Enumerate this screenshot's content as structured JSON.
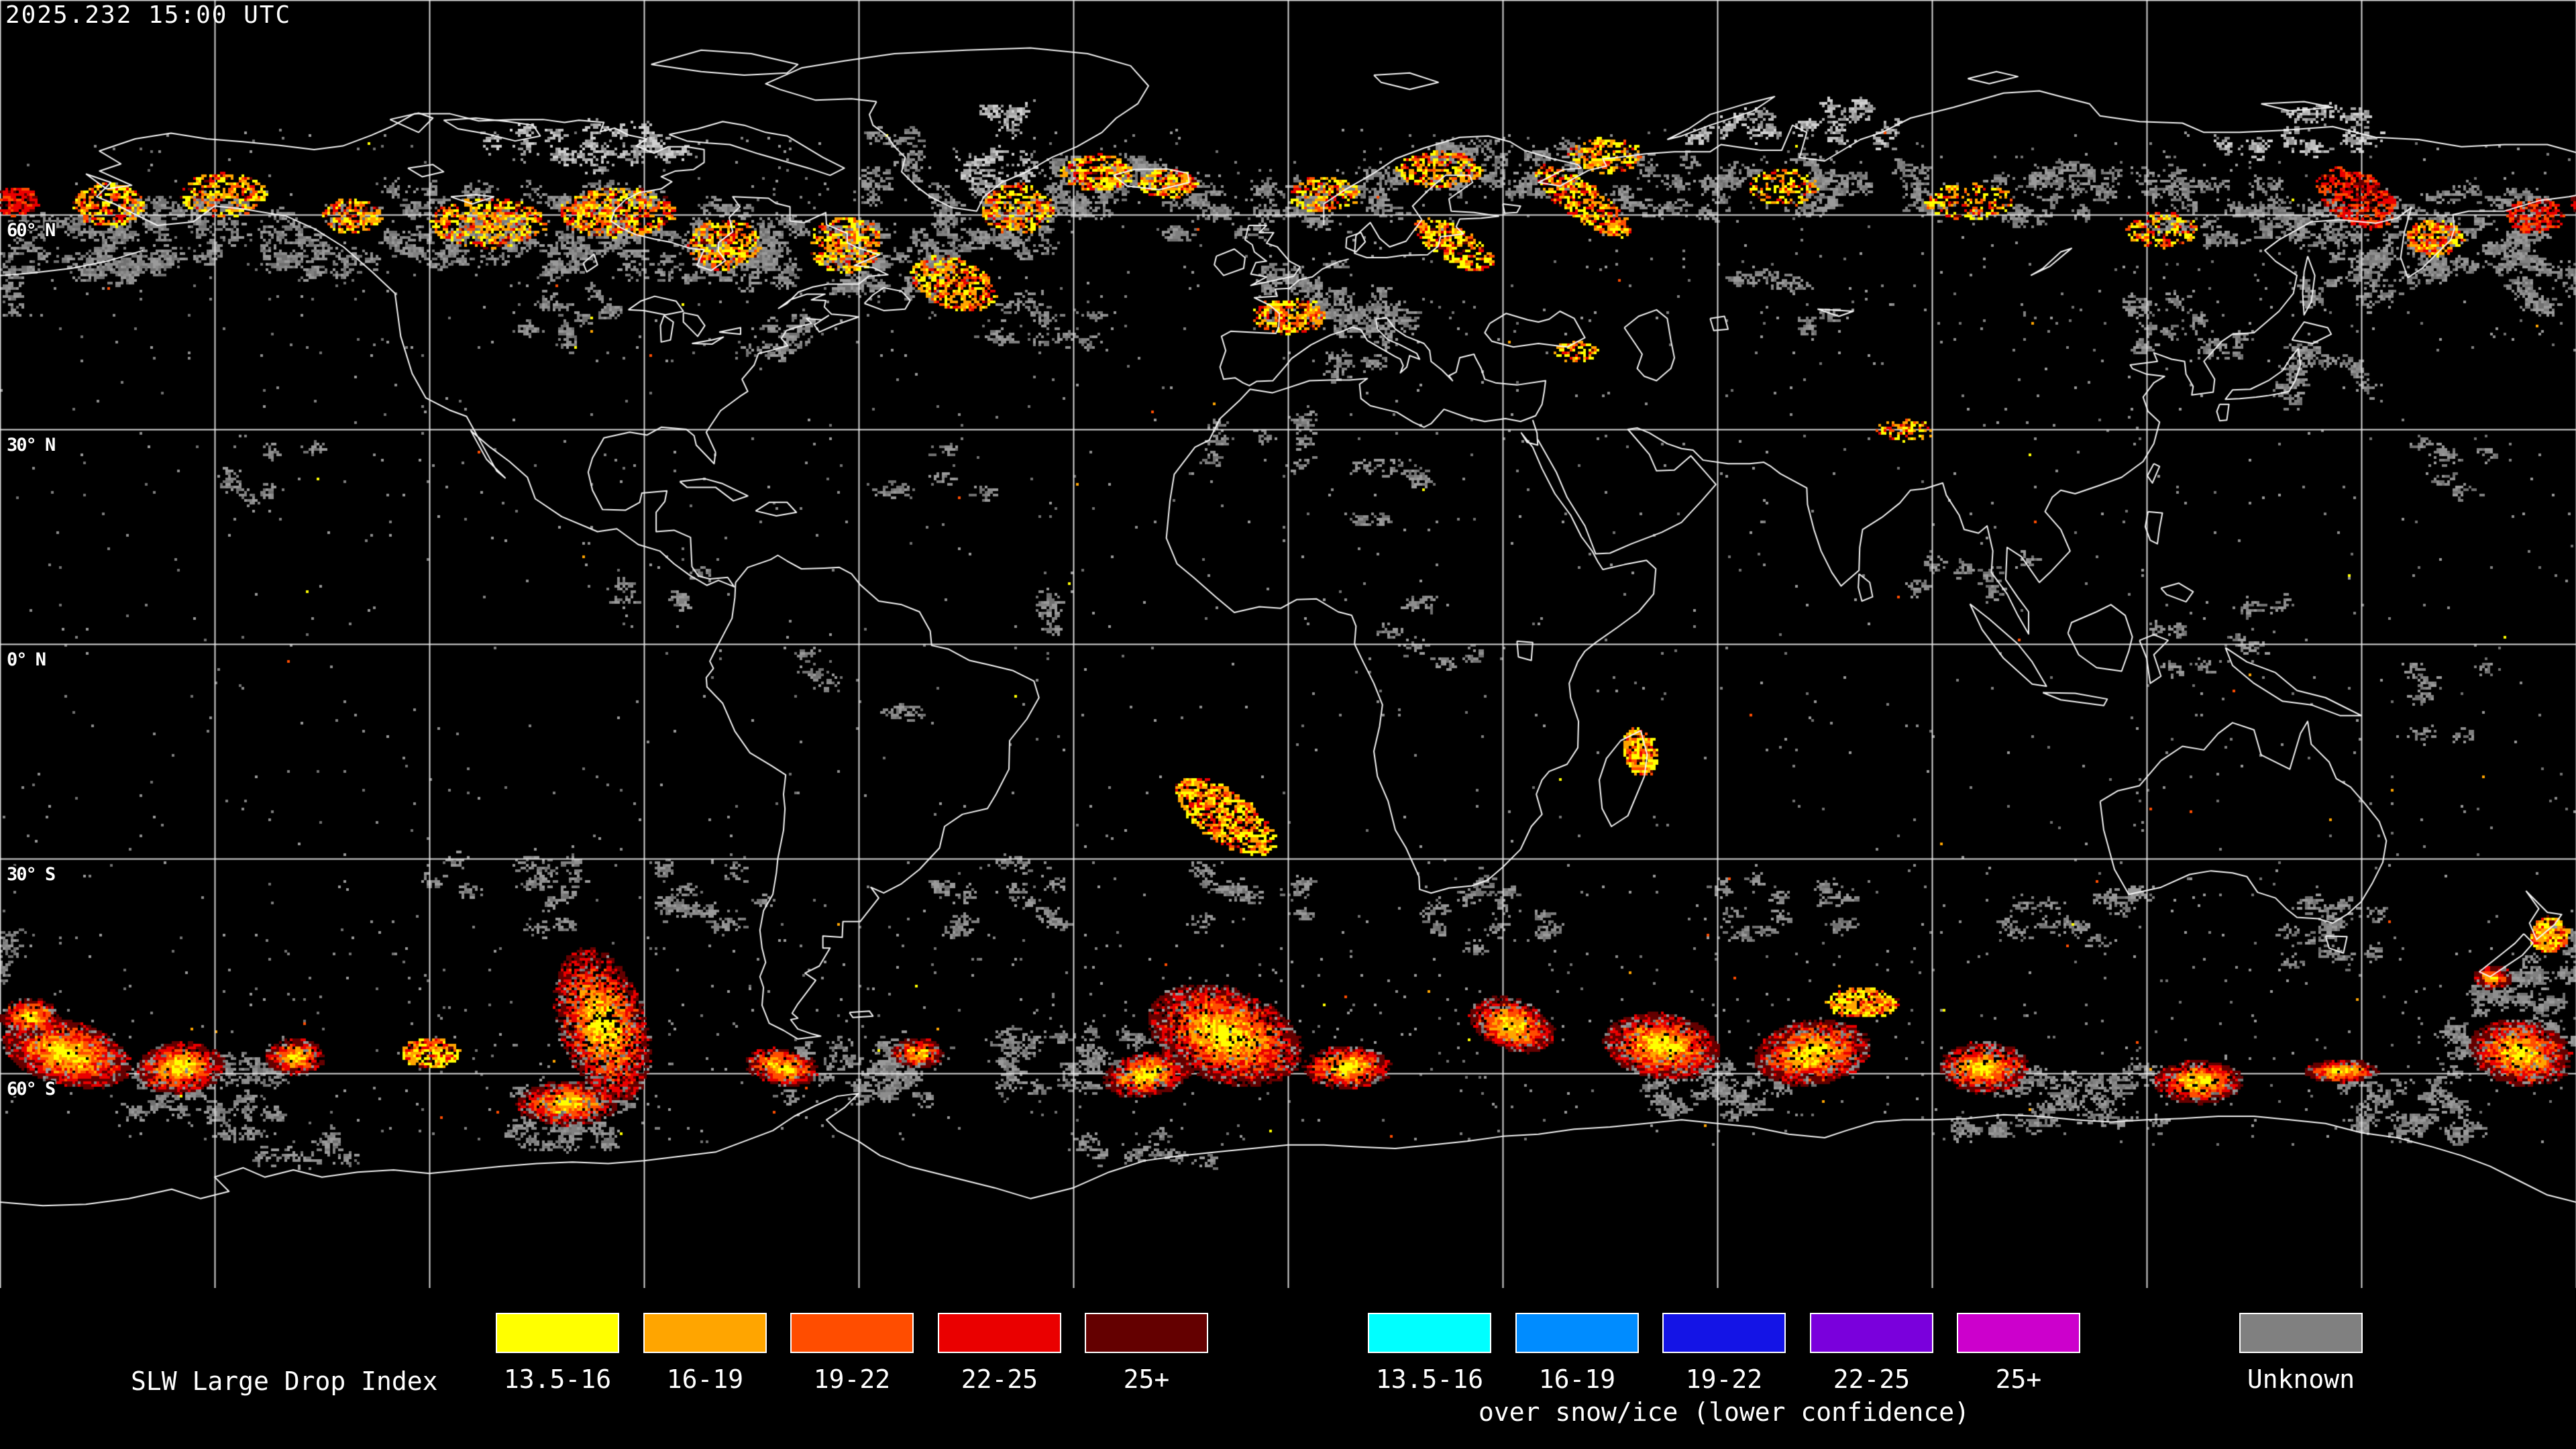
{
  "header": {
    "timestamp": "2025.232 15:00 UTC"
  },
  "map": {
    "lat_labels": [
      {
        "label": "60° N"
      },
      {
        "label": "30° N"
      },
      {
        "label": "0° N"
      },
      {
        "label": "30° S"
      },
      {
        "label": "60° S"
      }
    ]
  },
  "legend": {
    "title": "SLW Large Drop Index",
    "warm": [
      {
        "label": "13.5-16",
        "color": "#ffff00"
      },
      {
        "label": "16-19",
        "color": "#ffa500"
      },
      {
        "label": "19-22",
        "color": "#ff4d00"
      },
      {
        "label": "22-25",
        "color": "#ea0000"
      },
      {
        "label": "25+",
        "color": "#640000"
      }
    ],
    "cool": [
      {
        "label": "13.5-16",
        "color": "#00ffff"
      },
      {
        "label": "16-19",
        "color": "#008cff"
      },
      {
        "label": "19-22",
        "color": "#1414e6"
      },
      {
        "label": "22-25",
        "color": "#7a00dc"
      },
      {
        "label": "25+",
        "color": "#cc00cc"
      }
    ],
    "cool_caption": "over snow/ice (lower confidence)",
    "unknown": {
      "label": "Unknown",
      "color": "#808080"
    }
  },
  "colors": {
    "background": "#000000",
    "gridline": "#ededed",
    "coastline": "#f5f5f5",
    "gray_data": "#808080"
  }
}
